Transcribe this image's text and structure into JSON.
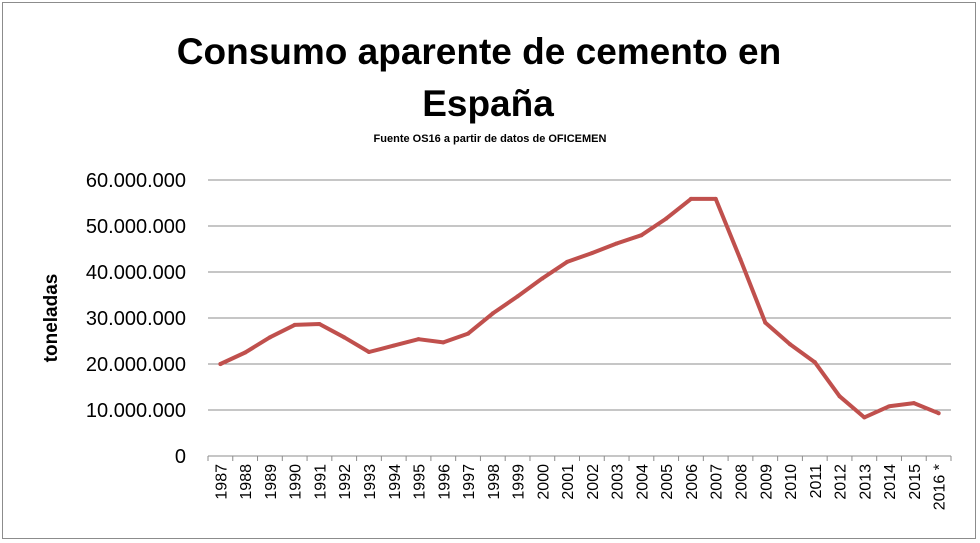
{
  "chart_data": {
    "type": "line",
    "title_line1": "Consumo aparente de cemento en",
    "title_line2": "España",
    "subtitle": "Fuente OS16 a partir de datos de OFICEMEN",
    "xlabel": "",
    "ylabel": "toneladas",
    "ylim": [
      0,
      60000000
    ],
    "y_ticks": [
      0,
      10000000,
      20000000,
      30000000,
      40000000,
      50000000,
      60000000
    ],
    "y_tick_labels": [
      "0",
      "10.000.000",
      "20.000.000",
      "30.000.000",
      "40.000.000",
      "50.000.000",
      "60.000.000"
    ],
    "grid": true,
    "categories": [
      "1987",
      "1988",
      "1989",
      "1990",
      "1991",
      "1992",
      "1993",
      "1994",
      "1995",
      "1996",
      "1997",
      "1998",
      "1999",
      "2000",
      "2001",
      "2002",
      "2003",
      "2004",
      "2005",
      "2006",
      "2007",
      "2008",
      "2009",
      "2010",
      "2011",
      "2012",
      "2013",
      "2014",
      "2015",
      "2016 *"
    ],
    "series": [
      {
        "name": "Consumo aparente de cemento",
        "color": "#c0504d",
        "values": [
          20000000,
          22500000,
          25800000,
          28500000,
          28700000,
          25800000,
          22600000,
          24000000,
          25400000,
          24700000,
          26600000,
          31000000,
          34700000,
          38600000,
          42200000,
          44100000,
          46200000,
          48000000,
          51600000,
          55900000,
          55900000,
          42700000,
          29000000,
          24300000,
          20400000,
          13000000,
          8400000,
          10800000,
          11500000,
          9300000
        ]
      }
    ]
  }
}
